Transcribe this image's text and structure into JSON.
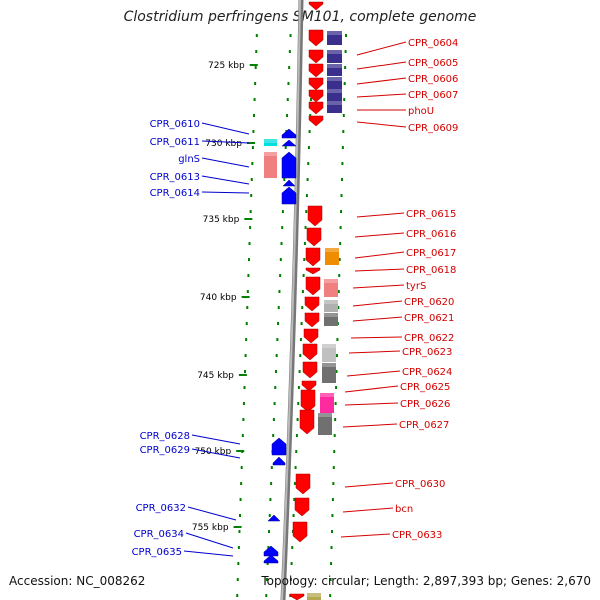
{
  "title": "Clostridium perfringens SM101, complete genome",
  "footer": {
    "accession": "Accession: NC_008262",
    "topology": "Topology: circular; Length: 2,897,393 bp; Genes: 2,670"
  },
  "colors": {
    "forward_gene": "#ff0000",
    "reverse_gene": "#0000ff",
    "forward_label": "#d40000",
    "reverse_label": "#0000cc",
    "tick": "#008000",
    "backbone": "#888888"
  },
  "map": {
    "kbp_ticks": [
      {
        "label": "725 kbp"
      },
      {
        "label": "730 kbp"
      },
      {
        "label": "735 kbp"
      },
      {
        "label": "740 kbp"
      },
      {
        "label": "745 kbp"
      },
      {
        "label": "750 kbp"
      },
      {
        "label": "755 kbp"
      }
    ],
    "forward_labels": [
      "CPR_0604",
      "CPR_0605",
      "CPR_0606",
      "CPR_0607",
      "phoU",
      "CPR_0609",
      "CPR_0615",
      "CPR_0616",
      "CPR_0617",
      "CPR_0618",
      "tyrS",
      "CPR_0620",
      "CPR_0621",
      "CPR_0622",
      "CPR_0623",
      "CPR_0624",
      "CPR_0625",
      "CPR_0626",
      "CPR_0627",
      "CPR_0630",
      "bcn",
      "CPR_0633"
    ],
    "reverse_labels": [
      "CPR_0610",
      "CPR_0611",
      "glnS",
      "CPR_0613",
      "CPR_0614",
      "CPR_0628",
      "CPR_0629",
      "CPR_0632",
      "CPR_0634",
      "CPR_0635"
    ]
  }
}
